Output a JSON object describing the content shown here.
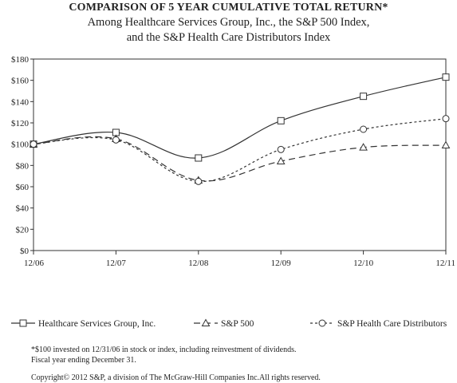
{
  "chart_data": {
    "type": "line",
    "title": "COMPARISON OF 5 YEAR CUMULATIVE TOTAL RETURN*",
    "subtitle_lines": [
      "Among Healthcare Services Group, Inc., the S&P 500 Index,",
      "and the S&P Health Care Distributors Index"
    ],
    "categories": [
      "12/06",
      "12/07",
      "12/08",
      "12/09",
      "12/10",
      "12/11"
    ],
    "ylim": [
      0,
      180
    ],
    "y_ticks": [
      "$0",
      "$20",
      "$40",
      "$60",
      "$80",
      "$100",
      "$120",
      "$140",
      "$160",
      "$180"
    ],
    "grid": false,
    "legend_position": "bottom",
    "series": [
      {
        "name": "Healthcare Services Group, Inc.",
        "marker": "square",
        "dash": "solid",
        "values": [
          100,
          111,
          87,
          122,
          145,
          163
        ]
      },
      {
        "name": "S&P 500",
        "marker": "triangle",
        "dash": "long-dash",
        "values": [
          100,
          105,
          66,
          84,
          97,
          99
        ]
      },
      {
        "name": "S&P Health Care Distributors",
        "marker": "circle",
        "dash": "short-dash",
        "values": [
          100,
          104,
          65,
          95,
          114,
          124
        ]
      }
    ]
  },
  "notes": {
    "footnote1": "*$100 invested on 12/31/06 in stock or index, including reinvestment of dividends.",
    "footnote2": "Fiscal year ending December 31.",
    "copyright": "Copyright© 2012 S&P, a division of The McGraw-Hill Companies Inc.All rights reserved."
  }
}
